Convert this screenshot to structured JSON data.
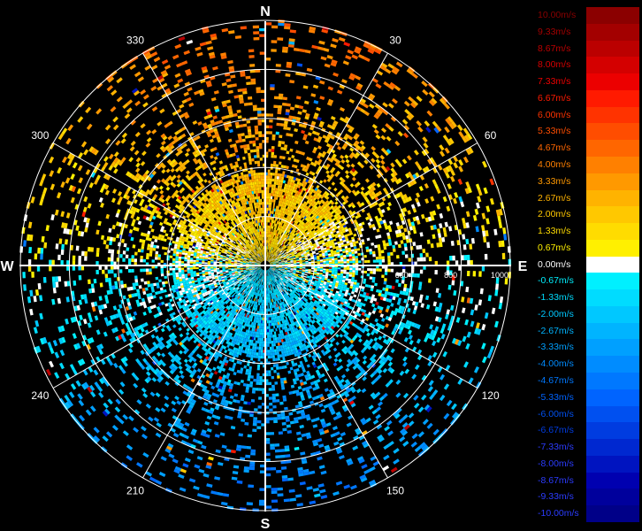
{
  "chart_data": {
    "type": "ppi_radial_velocity",
    "title": "",
    "compass": {
      "north": "N",
      "east": "E",
      "south": "S",
      "west": "W"
    },
    "azimuth_labels": [
      {
        "angle": 30,
        "text": "30"
      },
      {
        "angle": 60,
        "text": "60"
      },
      {
        "angle": 120,
        "text": "120"
      },
      {
        "angle": 150,
        "text": "150"
      },
      {
        "angle": 210,
        "text": "210"
      },
      {
        "angle": 240,
        "text": "240"
      },
      {
        "angle": 300,
        "text": "300"
      },
      {
        "angle": 330,
        "text": "330"
      }
    ],
    "spokes_deg": [
      0,
      30,
      60,
      90,
      120,
      150,
      180,
      210,
      240,
      270,
      300,
      330
    ],
    "range_rings": [
      200,
      400,
      600,
      800,
      1000
    ],
    "range_labels": [
      {
        "value": 600,
        "text": "600"
      },
      {
        "value": 800,
        "text": "800"
      },
      {
        "value": 1000,
        "text": "1000"
      }
    ],
    "max_range": 1000,
    "velocity_unit": "m/s",
    "velocity_range": [
      -10,
      10
    ],
    "color_scale": [
      {
        "value": 10.0,
        "label": "10.00m/s",
        "color": "#8b0000"
      },
      {
        "value": 9.33,
        "label": "9.33m/s",
        "color": "#a30000"
      },
      {
        "value": 8.67,
        "label": "8.67m/s",
        "color": "#bb0000"
      },
      {
        "value": 8.0,
        "label": "8.00m/s",
        "color": "#d40000"
      },
      {
        "value": 7.33,
        "label": "7.33m/s",
        "color": "#ec0000"
      },
      {
        "value": 6.67,
        "label": "6.67m/s",
        "color": "#ff1a00"
      },
      {
        "value": 6.0,
        "label": "6.00m/s",
        "color": "#ff3300"
      },
      {
        "value": 5.33,
        "label": "5.33m/s",
        "color": "#ff4d00"
      },
      {
        "value": 4.67,
        "label": "4.67m/s",
        "color": "#ff6600"
      },
      {
        "value": 4.0,
        "label": "4.00m/s",
        "color": "#ff8000"
      },
      {
        "value": 3.33,
        "label": "3.33m/s",
        "color": "#ff9900"
      },
      {
        "value": 2.67,
        "label": "2.67m/s",
        "color": "#ffb300"
      },
      {
        "value": 2.0,
        "label": "2.00m/s",
        "color": "#ffc800"
      },
      {
        "value": 1.33,
        "label": "1.33m/s",
        "color": "#ffdc00"
      },
      {
        "value": 0.67,
        "label": "0.67m/s",
        "color": "#fff000"
      },
      {
        "value": 0.0,
        "label": "0.00m/s",
        "color": "#ffffff"
      },
      {
        "value": -0.67,
        "label": "-0.67m/s",
        "color": "#00f0ff"
      },
      {
        "value": -1.33,
        "label": "-1.33m/s",
        "color": "#00dcff"
      },
      {
        "value": -2.0,
        "label": "-2.00m/s",
        "color": "#00c8ff"
      },
      {
        "value": -2.67,
        "label": "-2.67m/s",
        "color": "#00b4ff"
      },
      {
        "value": -3.33,
        "label": "-3.33m/s",
        "color": "#00a0ff"
      },
      {
        "value": -4.0,
        "label": "-4.00m/s",
        "color": "#008cff"
      },
      {
        "value": -4.67,
        "label": "-4.67m/s",
        "color": "#0078ff"
      },
      {
        "value": -5.33,
        "label": "-5.33m/s",
        "color": "#0064ff"
      },
      {
        "value": -6.0,
        "label": "-6.00m/s",
        "color": "#0050f0"
      },
      {
        "value": -6.67,
        "label": "-6.67m/s",
        "color": "#003ce0"
      },
      {
        "value": -7.33,
        "label": "-7.33m/s",
        "color": "#0028d0"
      },
      {
        "value": -8.0,
        "label": "-8.00m/s",
        "color": "#0014c0"
      },
      {
        "value": -8.67,
        "label": "-8.67m/s",
        "color": "#0000b0"
      },
      {
        "value": -9.33,
        "label": "-9.33m/s",
        "color": "#00009c"
      },
      {
        "value": -10.0,
        "label": "-10.00m/s",
        "color": "#000088"
      }
    ],
    "velocity_field": {
      "description_pattern": "northern half approaching-positive, southern half negative",
      "seed": 7
    }
  }
}
